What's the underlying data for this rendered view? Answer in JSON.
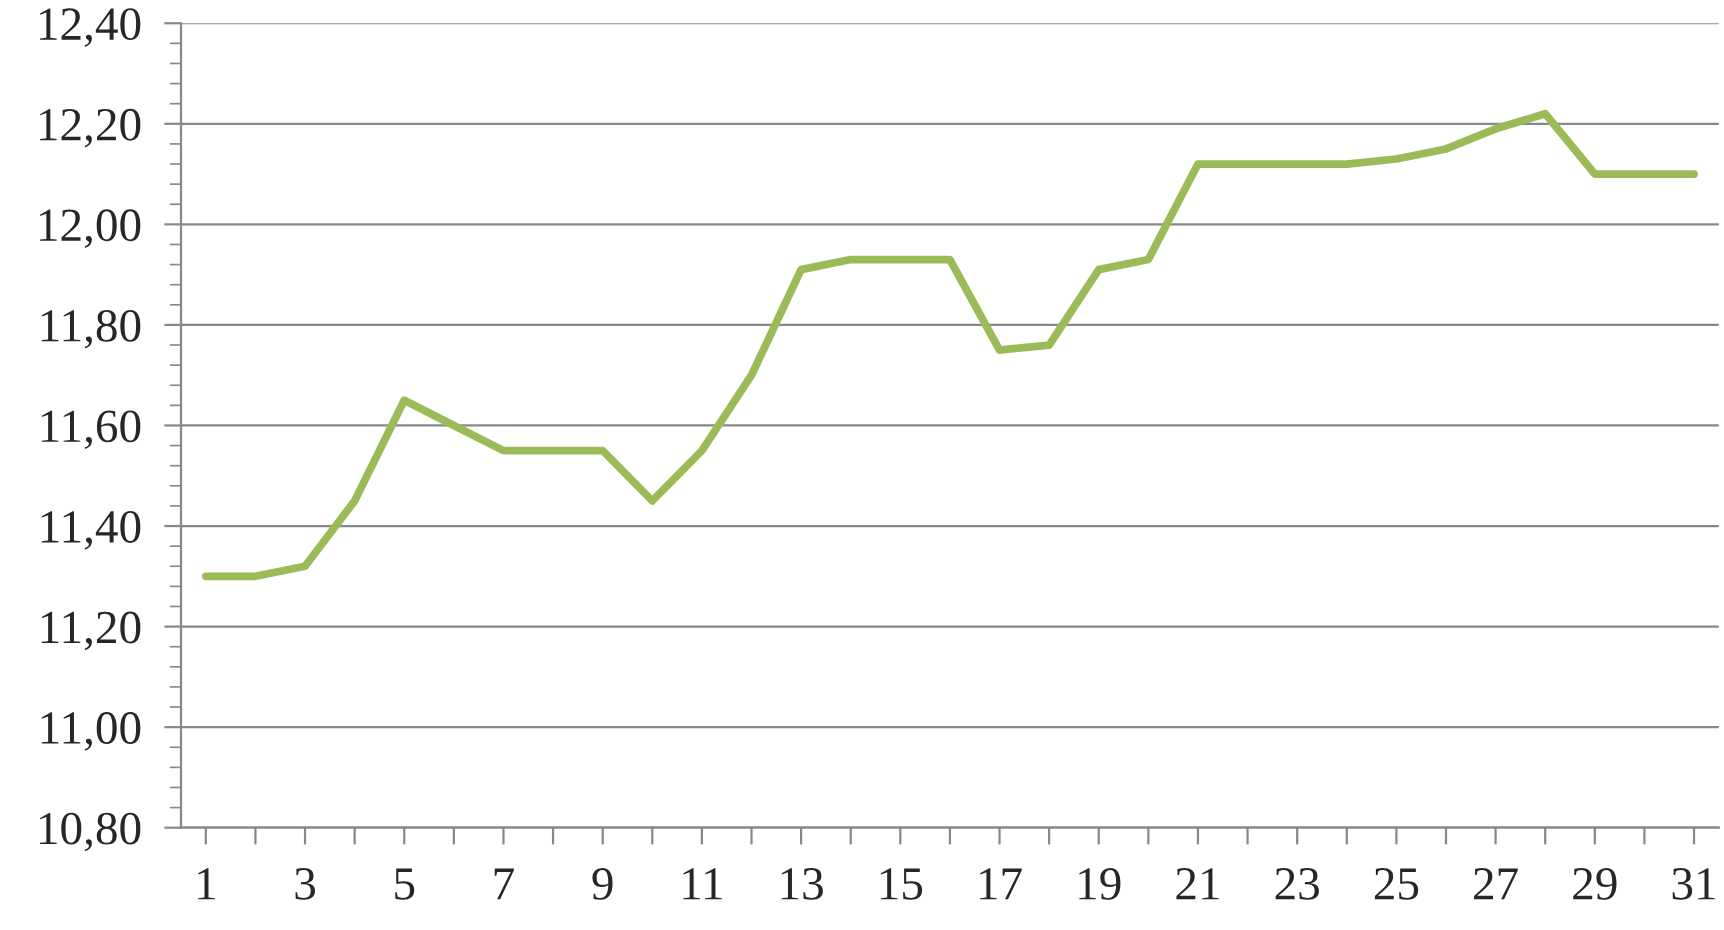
{
  "chart_data": {
    "type": "line",
    "color": "#9bbb59",
    "x": [
      1,
      2,
      3,
      4,
      5,
      6,
      7,
      8,
      9,
      10,
      11,
      12,
      13,
      14,
      15,
      16,
      17,
      18,
      19,
      20,
      21,
      22,
      23,
      24,
      25,
      26,
      27,
      28,
      29,
      30,
      31
    ],
    "values": [
      11.3,
      11.3,
      11.32,
      11.45,
      11.65,
      11.6,
      11.55,
      11.55,
      11.55,
      11.45,
      11.55,
      11.7,
      11.91,
      11.93,
      11.93,
      11.93,
      11.75,
      11.76,
      11.91,
      11.93,
      12.12,
      12.12,
      12.12,
      12.12,
      12.13,
      12.15,
      12.19,
      12.22,
      12.1,
      12.1,
      12.1
    ],
    "xlim": [
      0.5,
      31.5
    ],
    "xticks": [
      1,
      {
        "value": 2,
        "label": null
      },
      3,
      {
        "value": 4,
        "label": null
      },
      5,
      {
        "value": 6,
        "label": null
      },
      7,
      {
        "value": 8,
        "label": null
      },
      9,
      {
        "value": 10,
        "label": null
      },
      11,
      {
        "value": 12,
        "label": null
      },
      13,
      {
        "value": 14,
        "label": null
      },
      15,
      {
        "value": 16,
        "label": null
      },
      17,
      {
        "value": 18,
        "label": null
      },
      19,
      {
        "value": 20,
        "label": null
      },
      21,
      {
        "value": 22,
        "label": null
      },
      23,
      {
        "value": 24,
        "label": null
      },
      25,
      {
        "value": 26,
        "label": null
      },
      27,
      {
        "value": 28,
        "label": null
      },
      29,
      {
        "value": 30,
        "label": null
      },
      31
    ],
    "ylim": [
      10.8,
      12.4
    ],
    "yticks": [
      {
        "value": 10.8,
        "label": "10,80"
      },
      {
        "value": 11.0,
        "label": "11,00"
      },
      {
        "value": 11.2,
        "label": "11,20"
      },
      {
        "value": 11.4,
        "label": "11,40"
      },
      {
        "value": 11.6,
        "label": "11,60"
      },
      {
        "value": 11.8,
        "label": "11,80"
      },
      {
        "value": 12.0,
        "label": "12,00"
      },
      {
        "value": 12.2,
        "label": "12,20"
      },
      {
        "value": 12.4,
        "label": "12,40"
      }
    ],
    "grid": "y",
    "legend": false,
    "marker": "none",
    "line_style": "solid"
  }
}
